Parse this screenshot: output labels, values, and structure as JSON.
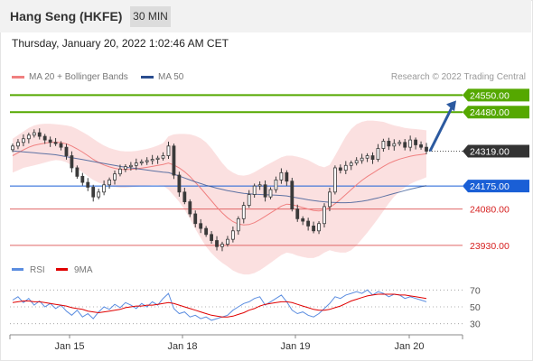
{
  "header": {
    "title": "Hang Seng (HKFE)",
    "timeframe": "30 MIN"
  },
  "datetime": "Thursday, January 20, 2022 1:02:46 AM CET",
  "copyright": "Research © 2022 Trading Central",
  "colors": {
    "resistance": "#55a800",
    "pivot": "#1a5fd6",
    "support": "#e06666",
    "bollinger_fill": "#fadada",
    "ma20": "#f08080",
    "ma50": "#2a4d8f",
    "candle": "#3a3a3a",
    "rsi": "#5b8de0",
    "rsi_ma": "#e00000",
    "arrow": "#2c5aa0",
    "last_price_bg": "#333333"
  },
  "chart_data": [
    {
      "type": "candlestick",
      "title": "",
      "legend": [
        {
          "name": "MA 20 + Bollinger Bands",
          "color": "#f08080"
        },
        {
          "name": "MA 50",
          "color": "#2a4d8f"
        }
      ],
      "legend_position": "top-left",
      "ylim": [
        23870,
        24600
      ],
      "grid": false,
      "x_ticks": [
        "Jan 15",
        "Jan 18",
        "Jan 19",
        "Jan 20"
      ],
      "price_levels": [
        {
          "value": 24550.0,
          "label": "24550.00",
          "kind": "resistance"
        },
        {
          "value": 24480.0,
          "label": "24480.00",
          "kind": "resistance"
        },
        {
          "value": 24319.0,
          "label": "24319.00",
          "kind": "last"
        },
        {
          "value": 24175.0,
          "label": "24175.00",
          "kind": "pivot"
        },
        {
          "value": 24080.0,
          "label": "24080.00",
          "kind": "support"
        },
        {
          "value": 23930.0,
          "label": "23930.00",
          "kind": "support"
        }
      ],
      "candles_close": [
        24340,
        24355,
        24370,
        24385,
        24395,
        24380,
        24365,
        24355,
        24350,
        24335,
        24300,
        24250,
        24215,
        24190,
        24170,
        24130,
        24150,
        24180,
        24200,
        24225,
        24245,
        24255,
        24260,
        24270,
        24275,
        24280,
        24285,
        24290,
        24300,
        24340,
        24220,
        24150,
        24110,
        24060,
        24020,
        24000,
        23975,
        23950,
        23925,
        23935,
        23955,
        23990,
        24040,
        24095,
        24140,
        24175,
        24180,
        24130,
        24160,
        24200,
        24230,
        24195,
        24080,
        24040,
        24030,
        24010,
        23990,
        24020,
        24090,
        24150,
        24250,
        24240,
        24260,
        24270,
        24280,
        24290,
        24300,
        24285,
        24330,
        24360,
        24340,
        24350,
        24355,
        24335,
        24365,
        24345,
        24335,
        24319
      ],
      "ma20": [
        24300,
        24312,
        24324,
        24335,
        24343,
        24348,
        24352,
        24355,
        24356,
        24354,
        24349,
        24340,
        24328,
        24315,
        24300,
        24285,
        24272,
        24262,
        24254,
        24248,
        24244,
        24243,
        24244,
        24246,
        24249,
        24252,
        24256,
        24260,
        24264,
        24270,
        24262,
        24250,
        24234,
        24214,
        24190,
        24166,
        24140,
        24114,
        24088,
        24064,
        24044,
        24028,
        24018,
        24014,
        24016,
        24024,
        24036,
        24050,
        24064,
        24078,
        24092,
        24100,
        24098,
        24092,
        24086,
        24080,
        24074,
        24072,
        24076,
        24086,
        24102,
        24120,
        24140,
        24160,
        24180,
        24198,
        24214,
        24228,
        24242,
        24256,
        24268,
        24278,
        24286,
        24292,
        24298,
        24302,
        24305,
        24308
      ],
      "bb_upper": [
        24370,
        24385,
        24400,
        24415,
        24425,
        24430,
        24432,
        24432,
        24430,
        24428,
        24425,
        24420,
        24410,
        24398,
        24385,
        24370,
        24355,
        24342,
        24332,
        24325,
        24320,
        24318,
        24318,
        24320,
        24324,
        24328,
        24334,
        24342,
        24352,
        24380,
        24388,
        24390,
        24390,
        24388,
        24382,
        24372,
        24355,
        24330,
        24300,
        24270,
        24245,
        24230,
        24220,
        24218,
        24222,
        24232,
        24245,
        24258,
        24270,
        24282,
        24294,
        24300,
        24300,
        24296,
        24290,
        24282,
        24270,
        24258,
        24252,
        24262,
        24300,
        24340,
        24380,
        24410,
        24430,
        24440,
        24445,
        24445,
        24443,
        24440,
        24432,
        24425,
        24420,
        24415,
        24412,
        24410,
        24408,
        24405
      ],
      "bb_lower": [
        24230,
        24240,
        24250,
        24255,
        24260,
        24266,
        24272,
        24278,
        24282,
        24280,
        24273,
        24260,
        24246,
        24232,
        24215,
        24200,
        24189,
        24182,
        24176,
        24171,
        24168,
        24168,
        24170,
        24172,
        24174,
        24176,
        24178,
        24178,
        24176,
        24160,
        24136,
        24110,
        24078,
        24040,
        23998,
        23960,
        23925,
        23898,
        23876,
        23858,
        23843,
        23826,
        23816,
        23810,
        23810,
        23816,
        23827,
        23842,
        23858,
        23874,
        23890,
        23900,
        23896,
        23888,
        23882,
        23878,
        23878,
        23886,
        23900,
        23910,
        23904,
        23900,
        23900,
        23910,
        23930,
        23956,
        23983,
        24011,
        24041,
        24072,
        24104,
        24131,
        24152,
        24169,
        24184,
        24194,
        24202,
        24211
      ],
      "ma50": [
        24320,
        24318,
        24316,
        24314,
        24312,
        24310,
        24308,
        24306,
        24304,
        24300,
        24296,
        24292,
        24288,
        24284,
        24280,
        24276,
        24272,
        24268,
        24264,
        24260,
        24256,
        24253,
        24250,
        24247,
        24244,
        24241,
        24238,
        24235,
        24232,
        24230,
        24224,
        24216,
        24208,
        24200,
        24192,
        24185,
        24178,
        24172,
        24166,
        24161,
        24156,
        24152,
        24148,
        24145,
        24143,
        24141,
        24140,
        24139,
        24138,
        24137,
        24136,
        24134,
        24130,
        24126,
        24122,
        24118,
        24115,
        24112,
        24110,
        24108,
        24107,
        24106,
        24106,
        24107,
        24109,
        24112,
        24116,
        24121,
        24126,
        24132,
        24138,
        24144,
        24150,
        24156,
        24162,
        24167,
        24172,
        24176
      ]
    },
    {
      "type": "line",
      "title": "",
      "legend": [
        {
          "name": "RSI",
          "color": "#5b8de0"
        },
        {
          "name": "9MA",
          "color": "#e00000"
        }
      ],
      "legend_position": "top-left",
      "ylim": [
        20,
        80
      ],
      "y_ticks": [
        70,
        50,
        30
      ],
      "series": [
        {
          "name": "RSI",
          "values": [
            58,
            62,
            55,
            60,
            52,
            57,
            50,
            54,
            48,
            52,
            45,
            40,
            46,
            38,
            42,
            36,
            44,
            50,
            47,
            53,
            49,
            55,
            52,
            48,
            54,
            50,
            56,
            52,
            60,
            66,
            48,
            42,
            44,
            38,
            40,
            36,
            38,
            34,
            36,
            38,
            40,
            46,
            50,
            54,
            56,
            60,
            62,
            52,
            56,
            60,
            64,
            56,
            46,
            42,
            44,
            40,
            38,
            42,
            48,
            54,
            62,
            60,
            64,
            66,
            68,
            66,
            70,
            64,
            68,
            66,
            62,
            65,
            64,
            60,
            62,
            60,
            58,
            56
          ]
        },
        {
          "name": "9MA",
          "values": [
            55,
            56,
            57,
            57,
            56,
            56,
            55,
            54,
            53,
            52,
            51,
            49,
            48,
            47,
            45,
            44,
            43,
            44,
            45,
            46,
            47,
            49,
            50,
            51,
            51,
            52,
            52,
            53,
            54,
            55,
            54,
            52,
            50,
            48,
            46,
            44,
            42,
            40,
            39,
            38,
            38,
            39,
            41,
            43,
            46,
            48,
            51,
            53,
            54,
            55,
            56,
            56,
            55,
            53,
            51,
            49,
            47,
            46,
            46,
            47,
            49,
            51,
            54,
            57,
            59,
            61,
            63,
            64,
            65,
            65,
            65,
            65,
            64,
            64,
            63,
            62,
            61,
            60
          ]
        }
      ]
    }
  ]
}
